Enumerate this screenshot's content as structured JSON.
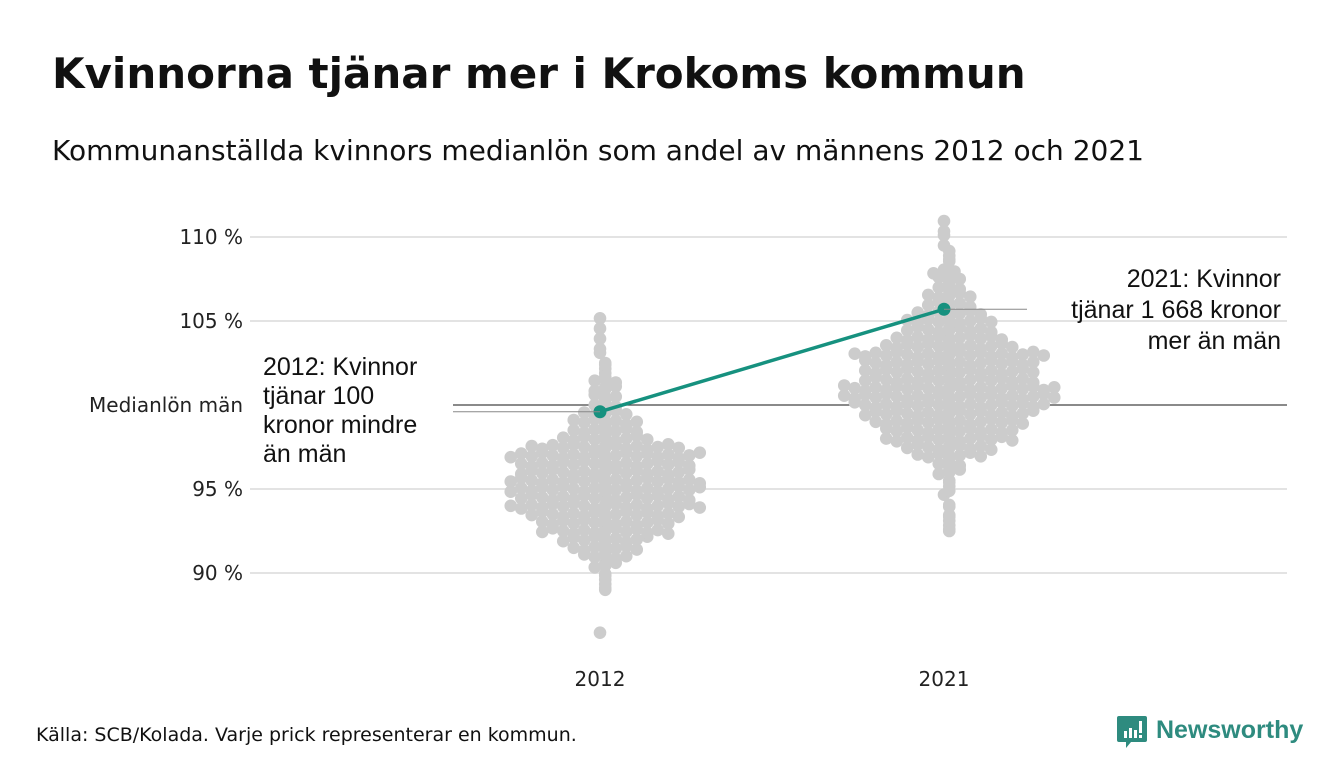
{
  "chart_data": {
    "type": "scatter",
    "subtype": "beeswarm",
    "title": "Kvinnorna tjänar mer i Krokoms kommun",
    "subtitle": "Kommunanställda kvinnors medianlön som andel av männens 2012 och 2021",
    "categories": [
      "2012",
      "2021"
    ],
    "ylabel": "",
    "ylim": [
      85.5,
      112
    ],
    "yticks": [
      {
        "value": 110,
        "label": "110 %"
      },
      {
        "value": 105,
        "label": "105 %"
      },
      {
        "value": 100,
        "label": "Medianlön män"
      },
      {
        "value": 95,
        "label": "95 %"
      },
      {
        "value": 90,
        "label": "90 %"
      }
    ],
    "grid": true,
    "distribution_bin_width": 0.5,
    "distribution": {
      "2012": [
        [
          86.5,
          1
        ],
        [
          89,
          2
        ],
        [
          89.5,
          2
        ],
        [
          90,
          2
        ],
        [
          90.5,
          4
        ],
        [
          91,
          6
        ],
        [
          91.5,
          8
        ],
        [
          92,
          10
        ],
        [
          92.5,
          14
        ],
        [
          93,
          14
        ],
        [
          93.5,
          16
        ],
        [
          94,
          20
        ],
        [
          94.5,
          18
        ],
        [
          95,
          20
        ],
        [
          95.5,
          20
        ],
        [
          96,
          18
        ],
        [
          96.5,
          18
        ],
        [
          97,
          20
        ],
        [
          97.5,
          16
        ],
        [
          98,
          10
        ],
        [
          98.5,
          8
        ],
        [
          99,
          8
        ],
        [
          99.5,
          6
        ],
        [
          100,
          4
        ],
        [
          100.5,
          4
        ],
        [
          101,
          4
        ],
        [
          101.5,
          4
        ],
        [
          102,
          2
        ],
        [
          102.5,
          2
        ],
        [
          103,
          1
        ],
        [
          103.5,
          1
        ],
        [
          104,
          1
        ],
        [
          104.5,
          1
        ],
        [
          105,
          1
        ]
      ],
      "2021": [
        [
          92.5,
          2
        ],
        [
          93,
          2
        ],
        [
          93.5,
          2
        ],
        [
          94,
          2
        ],
        [
          94.5,
          1
        ],
        [
          95,
          2
        ],
        [
          95.5,
          2
        ],
        [
          96,
          4
        ],
        [
          96.5,
          4
        ],
        [
          97,
          8
        ],
        [
          97.5,
          10
        ],
        [
          98,
          14
        ],
        [
          98.5,
          14
        ],
        [
          99,
          16
        ],
        [
          99.5,
          18
        ],
        [
          100,
          20
        ],
        [
          100.5,
          22
        ],
        [
          101,
          22
        ],
        [
          101.5,
          18
        ],
        [
          102,
          18
        ],
        [
          102.5,
          18
        ],
        [
          103,
          20
        ],
        [
          103.5,
          14
        ],
        [
          104,
          12
        ],
        [
          104.5,
          10
        ],
        [
          105,
          10
        ],
        [
          105.5,
          8
        ],
        [
          106,
          6
        ],
        [
          106.5,
          6
        ],
        [
          107,
          4
        ],
        [
          107.5,
          4
        ],
        [
          108,
          3
        ],
        [
          108.5,
          2
        ],
        [
          109,
          2
        ],
        [
          109.5,
          1
        ],
        [
          110,
          1
        ],
        [
          110.5,
          1
        ],
        [
          111,
          1
        ]
      ]
    },
    "highlight": {
      "name": "Krokom",
      "color": "#16917f",
      "points": [
        {
          "x": "2012",
          "y": 99.6
        },
        {
          "x": "2021",
          "y": 105.7
        }
      ]
    },
    "dot_color": "#cccccc",
    "annotations": {
      "a2012": [
        "2012: Kvinnor",
        "tjänar 100",
        "kronor mindre",
        "än män"
      ],
      "a2021": [
        "2021: Kvinnor",
        "tjänar 1 668 kronor",
        "mer än män"
      ]
    }
  },
  "footer": {
    "source": "Källa: SCB/Kolada. Varje prick representerar en kommun.",
    "brand": "Newsworthy",
    "brand_color": "#2e8b7f"
  }
}
